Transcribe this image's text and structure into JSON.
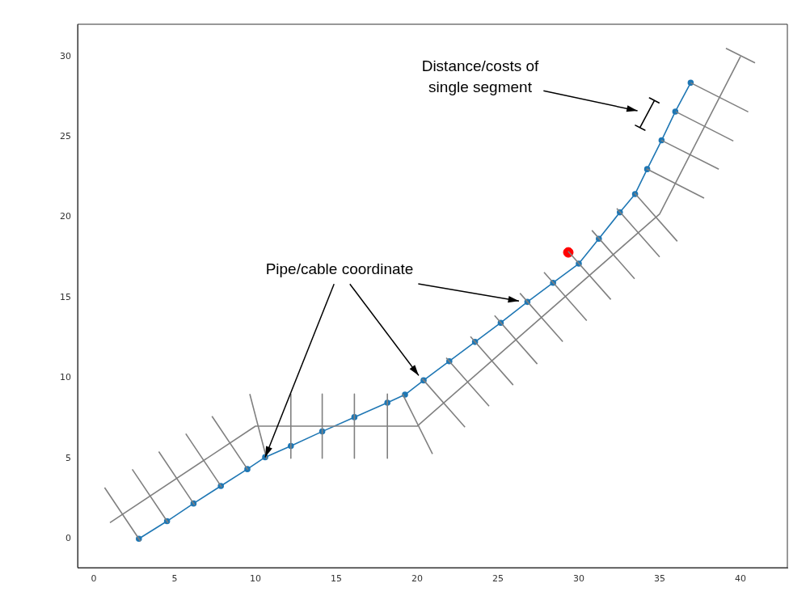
{
  "chart_data": {
    "type": "line",
    "xlim": [
      -1,
      42.9
    ],
    "ylim": [
      -1.8,
      32
    ],
    "xticks": [
      0,
      5,
      10,
      15,
      20,
      25,
      30,
      35,
      40
    ],
    "yticks": [
      0,
      5,
      10,
      15,
      20,
      25,
      30
    ],
    "grid": false,
    "legend": false,
    "marker": "circle",
    "line_style": "solid",
    "series": [
      {
        "type": "line",
        "color": "#808080",
        "marker": "none",
        "x": [
          1,
          10,
          20,
          35,
          40
        ],
        "values": [
          1,
          7,
          7,
          20.2,
          30
        ]
      },
      {
        "type": "line",
        "color": "#808080",
        "marker": "none",
        "x": [
          0.67,
          2.89,
          null,
          2.38,
          4.6,
          null,
          4.02,
          6.24,
          null,
          5.69,
          7.91,
          null,
          7.31,
          9.53,
          null,
          9.65,
          10.7,
          null,
          12.19,
          12.19,
          null,
          14.13,
          14.13,
          null,
          16.12,
          16.12,
          null,
          18.16,
          18.16,
          null,
          19.1,
          20.95,
          null,
          20.32,
          22.96,
          null,
          21.8,
          24.45,
          null,
          23.3,
          25.94,
          null,
          24.79,
          27.43,
          null,
          26.36,
          29.01,
          null,
          27.85,
          30.49,
          null,
          29.34,
          31.98,
          null,
          30.81,
          33.45,
          null,
          32.35,
          35,
          null,
          33.45,
          36.09,
          null,
          34.19,
          37.75,
          null,
          35.1,
          38.66,
          null,
          36,
          39.56,
          null,
          36.92,
          40.48,
          null,
          39.1,
          40.9
        ],
        "values": [
          3.18,
          -0.15,
          null,
          4.32,
          0.99,
          null,
          5.42,
          2.09,
          null,
          6.53,
          3.21,
          null,
          7.62,
          4.29,
          null,
          9,
          4.95,
          null,
          9,
          5,
          null,
          9,
          5,
          null,
          9,
          5,
          null,
          9,
          5,
          null,
          9,
          5.27,
          null,
          9.95,
          6.94,
          null,
          11.25,
          8.25,
          null,
          12.57,
          9.56,
          null,
          13.88,
          10.87,
          null,
          15.27,
          12.26,
          null,
          16.57,
          13.57,
          null,
          17.88,
          14.88,
          null,
          19.18,
          16.17,
          null,
          20.54,
          17.53,
          null,
          21.5,
          18.5,
          null,
          23.01,
          21.19,
          null,
          24.79,
          22.98,
          null,
          26.56,
          24.74,
          null,
          28.36,
          26.55,
          null,
          30.5,
          29.6
        ]
      },
      {
        "color": "#1f77b4",
        "x": [
          2.79,
          4.53,
          6.17,
          7.86,
          9.5,
          10.6,
          12.19,
          14.13,
          16.12,
          18.16,
          19.25,
          20.4,
          21.99,
          23.58,
          25.17,
          26.82,
          28.41,
          30,
          31.24,
          32.54,
          33.48,
          34.23,
          35.12,
          35.97,
          36.92
        ],
        "values": [
          0,
          1.09,
          2.19,
          3.28,
          4.33,
          5.07,
          5.77,
          6.67,
          7.56,
          8.46,
          8.96,
          9.85,
          11.04,
          12.24,
          13.43,
          14.73,
          15.92,
          17.11,
          18.66,
          20.3,
          21.44,
          22.99,
          24.78,
          26.57,
          28.36
        ]
      },
      {
        "type": "scatter",
        "color": "#ff0000",
        "x": [
          29.35
        ],
        "values": [
          17.81
        ]
      },
      {
        "type": "line",
        "color": "#000000",
        "marker": "none",
        "x": [
          33.47,
          34.09,
          33.78,
          34.68,
          34.37,
          34.99
        ],
        "values": [
          25.73,
          25.41,
          25.57,
          27.26,
          27.42,
          27.1
        ]
      }
    ],
    "annotations": [
      "Distance/costs of single segment",
      {
        "text": "Pipe/cable coordinate",
        "x": 10.6,
        "y": 5.07
      }
    ]
  }
}
